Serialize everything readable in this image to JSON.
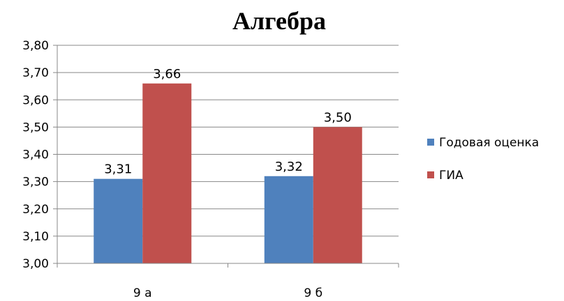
{
  "chart_data": {
    "type": "bar",
    "title": "Алгебра",
    "categories": [
      "9 а",
      "9 б"
    ],
    "series": [
      {
        "name": "Годовая оценка",
        "color": "#4F81BD",
        "values": [
          3.31,
          3.32
        ],
        "labels": [
          "3,31",
          "3,32"
        ]
      },
      {
        "name": "ГИА",
        "color": "#C0504D",
        "values": [
          3.66,
          3.5
        ],
        "labels": [
          "3,66",
          "3,50"
        ]
      }
    ],
    "ylim": [
      3.0,
      3.8
    ],
    "yticks": [
      3.0,
      3.1,
      3.2,
      3.3,
      3.4,
      3.5,
      3.6,
      3.7,
      3.8
    ],
    "ytick_labels": [
      "3,00",
      "3,10",
      "3,20",
      "3,30",
      "3,40",
      "3,50",
      "3,60",
      "3,70",
      "3,80"
    ],
    "grid": true,
    "legend": "right"
  }
}
